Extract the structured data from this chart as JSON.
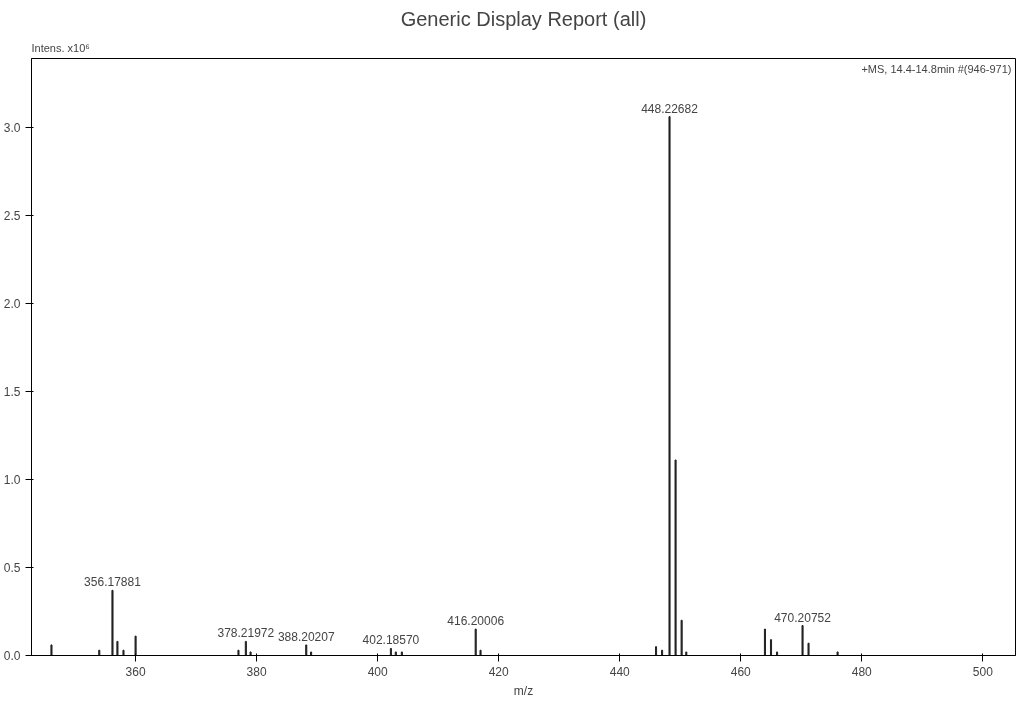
{
  "chart_data": {
    "type": "bar",
    "title": "Generic Display Report (all)",
    "xlabel": "m/z",
    "ylabel": "Intens. x10⁶",
    "x": [
      346.1,
      354.0,
      356.18,
      357.0,
      358.0,
      360.0,
      377.0,
      378.22,
      379.0,
      388.2,
      389.0,
      402.19,
      403.0,
      404.0,
      416.2,
      417.0,
      446.0,
      447.0,
      448.23,
      449.23,
      450.23,
      451.0,
      464.0,
      465.0,
      466.0,
      470.21,
      471.2,
      476.0
    ],
    "series": [
      {
        "color": "#222222",
        "values": [
          0.06,
          0.03,
          0.37,
          0.08,
          0.03,
          0.11,
          0.03,
          0.08,
          0.02,
          0.06,
          0.02,
          0.04,
          0.02,
          0.02,
          0.15,
          0.03,
          0.05,
          0.03,
          3.06,
          1.11,
          0.2,
          0.02,
          0.15,
          0.09,
          0.02,
          0.17,
          0.07,
          0.02
        ]
      }
    ],
    "xlim": [
      342.8,
      505.4
    ],
    "ylim": [
      0,
      3.39
    ],
    "xticks": [
      360,
      380,
      400,
      420,
      440,
      460,
      480,
      500
    ],
    "yticks": [
      {
        "value": 0,
        "label": "0.0"
      },
      {
        "value": 0.5,
        "label": "0.5"
      },
      {
        "value": 1,
        "label": "1.0"
      },
      {
        "value": 1.5,
        "label": "1.5"
      },
      {
        "value": 2,
        "label": "2.0"
      },
      {
        "value": 2.5,
        "label": "2.5"
      },
      {
        "value": 3,
        "label": "3.0"
      }
    ],
    "grid": false,
    "annotations": [
      {
        "text": "356.17881",
        "x": 356.18,
        "y": 0.37
      },
      {
        "text": "378.21972",
        "x": 378.22,
        "y": 0.08
      },
      {
        "text": "388.20207",
        "x": 388.2,
        "y": 0.06
      },
      {
        "text": "402.18570",
        "x": 402.19,
        "y": 0.04
      },
      {
        "text": "416.20006",
        "x": 416.2,
        "y": 0.15
      },
      {
        "text": "448.22682",
        "x": 448.23,
        "y": 3.06
      },
      {
        "text": "470.20752",
        "x": 470.21,
        "y": 0.17
      },
      "+MS, 14.4-14.8min #(946-971)"
    ]
  }
}
